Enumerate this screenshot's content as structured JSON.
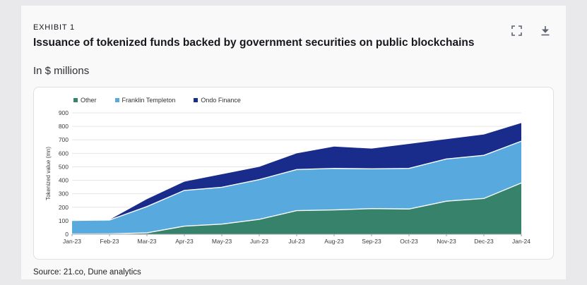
{
  "header": {
    "exhibit_label": "EXHIBIT 1",
    "title": "Issuance of tokenized funds backed by government securities on public blockchains",
    "subtitle": "In $ millions"
  },
  "footer": {
    "source": "Source: 21.co, Dune analytics"
  },
  "colors": {
    "icon": "#5b6270",
    "grid": "#e6e6e8",
    "axis": "#9aa0a6",
    "band_separator": "#ffffff"
  },
  "chart_data": {
    "type": "area",
    "stacked": true,
    "title": "",
    "xlabel": "",
    "ylabel": "Tokenized value (mn)",
    "ylim": [
      0,
      900
    ],
    "ytick_step": 100,
    "grid": true,
    "legend_position": "top-left",
    "categories": [
      "Jan-23",
      "Feb-23",
      "Mar-23",
      "Apr-23",
      "May-23",
      "Jun-23",
      "Jul-23",
      "Aug-23",
      "Sep-23",
      "Oct-23",
      "Nov-23",
      "Dec-23",
      "Jan-24"
    ],
    "series": [
      {
        "name": "Other",
        "color": "#37826b",
        "values": [
          2,
          3,
          10,
          60,
          75,
          110,
          175,
          180,
          190,
          187,
          245,
          265,
          380
        ]
      },
      {
        "name": "Franklin Templeton",
        "color": "#58a9de",
        "values": [
          100,
          102,
          195,
          265,
          273,
          295,
          305,
          308,
          295,
          301,
          313,
          320,
          310
        ]
      },
      {
        "name": "Ondo Finance",
        "color": "#192b8b",
        "values": [
          0,
          2,
          55,
          65,
          97,
          95,
          120,
          162,
          150,
          182,
          147,
          155,
          135
        ]
      }
    ]
  }
}
